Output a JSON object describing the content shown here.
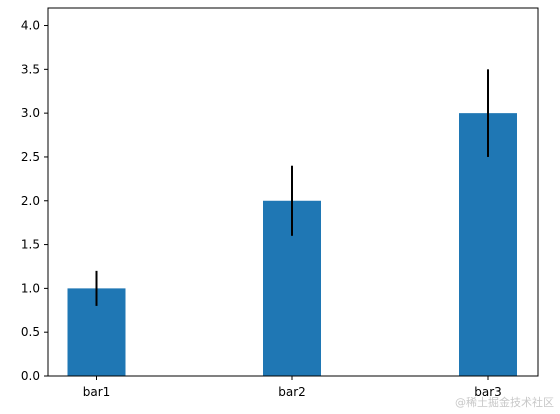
{
  "chart_data": {
    "type": "bar",
    "categories": [
      "bar1",
      "bar2",
      "bar3"
    ],
    "values": [
      1.0,
      2.0,
      3.0
    ],
    "error": [
      0.2,
      0.4,
      0.5
    ],
    "ylim": [
      0,
      4.2
    ],
    "yticks": [
      "0.0",
      "0.5",
      "1.0",
      "1.5",
      "2.0",
      "2.5",
      "3.0",
      "3.5",
      "4.0"
    ],
    "bar_color": "#1f77b4",
    "errorbar_color": "#000000",
    "grid": false,
    "legend": false
  },
  "watermark": "@稀土掘金技术社区"
}
